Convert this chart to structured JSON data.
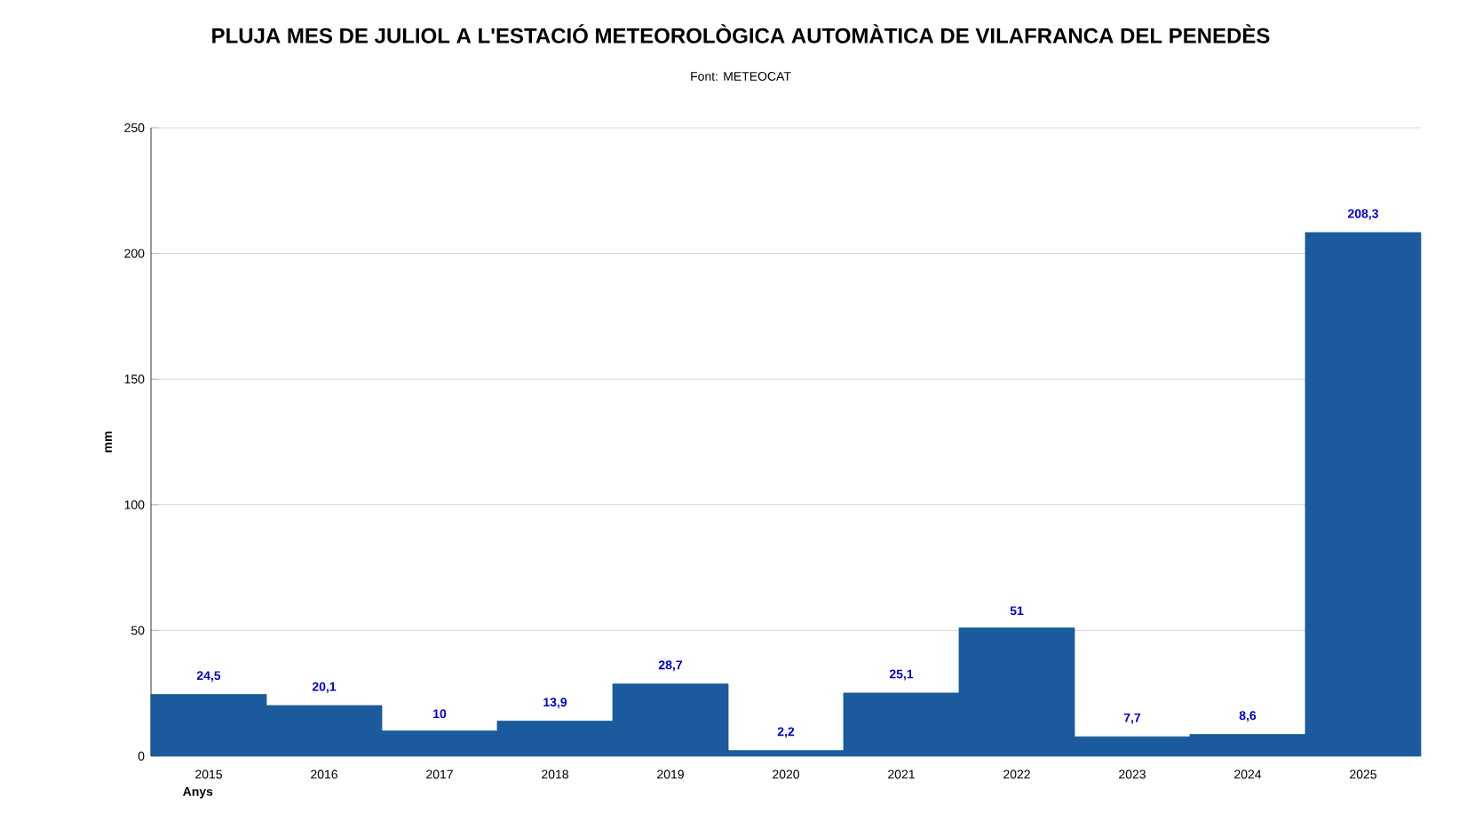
{
  "chart_data": {
    "type": "bar",
    "title": "PLUJA MES DE JULIOL A L'ESTACIÓ METEOROLÒGICA AUTOMÀTICA DE VILAFRANCA DEL PENEDÈS",
    "subtitle": "Font: METEOCAT",
    "xlabel": "Anys",
    "ylabel": "mm",
    "categories": [
      "2015",
      "2016",
      "2017",
      "2018",
      "2019",
      "2020",
      "2021",
      "2022",
      "2023",
      "2024",
      "2025"
    ],
    "values": [
      24.5,
      20.1,
      10,
      13.9,
      28.7,
      2.2,
      25.1,
      51,
      7.7,
      8.6,
      208.3
    ],
    "value_labels": [
      "24,5",
      "20,1",
      "10",
      "13,9",
      "28,7",
      "2,2",
      "25,1",
      "51",
      "7,7",
      "8,6",
      "208,3"
    ],
    "color": "#1b5a9c",
    "ylim": [
      0,
      250
    ],
    "yticks": [
      0,
      50,
      100,
      150,
      200,
      250
    ],
    "grid": "y"
  }
}
